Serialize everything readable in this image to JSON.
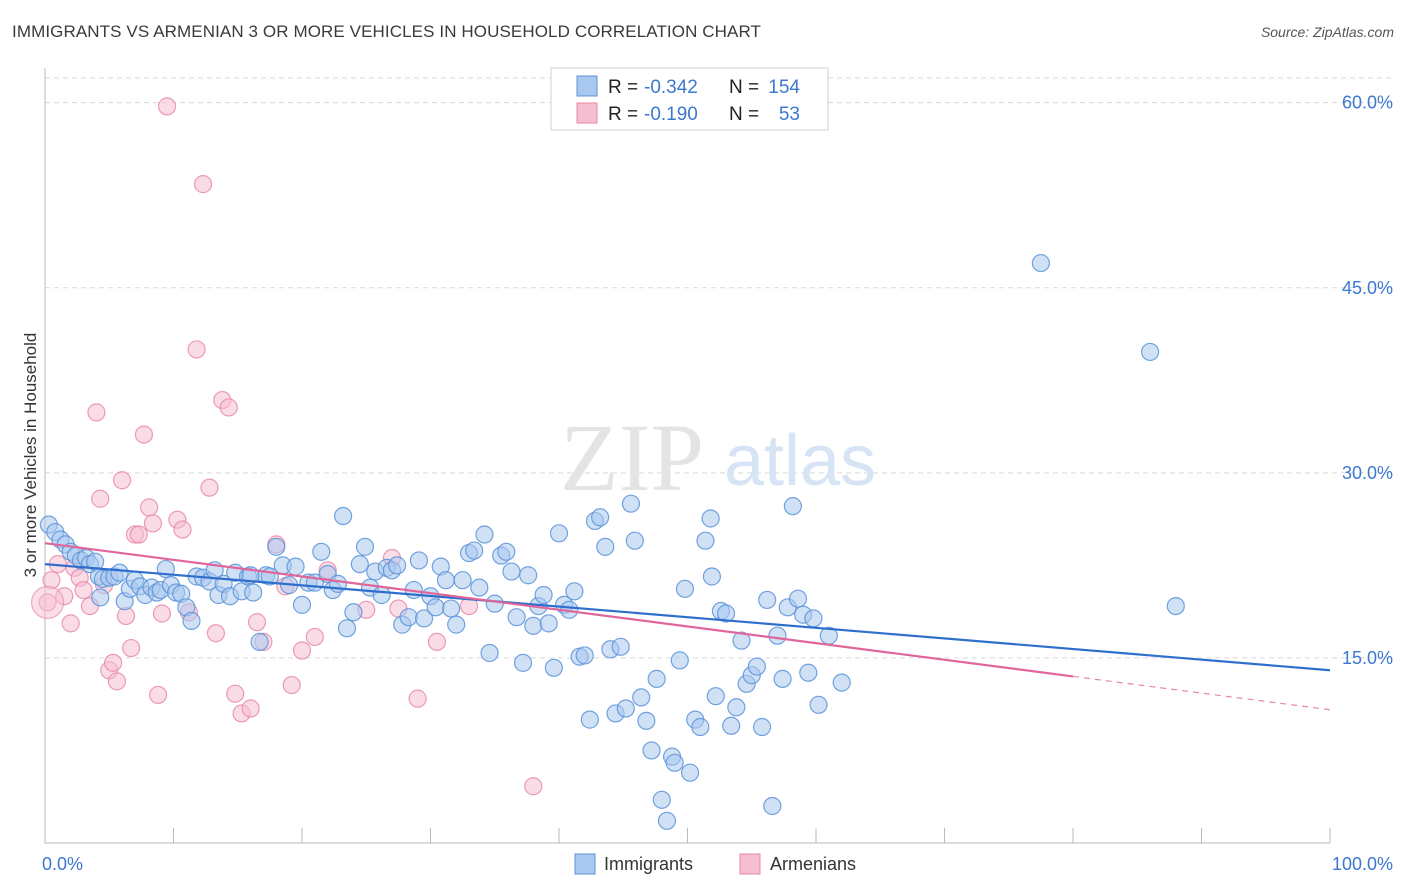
{
  "title": "IMMIGRANTS VS ARMENIAN 3 OR MORE VEHICLES IN HOUSEHOLD CORRELATION CHART",
  "source": "Source: ZipAtlas.com",
  "watermark": {
    "part1": "ZIP",
    "part2": "atlas"
  },
  "colors": {
    "immigrants": "#5b93d9",
    "immigrants_fill": "#a9c8ef",
    "immigrants_line": "#2f6fcc",
    "armenians": "#e98aaa",
    "armenians_fill": "#f5bfd1",
    "armenians_line": "#e0669a",
    "grid": "#d9d9d9",
    "tick": "#3b78d0"
  },
  "legend": {
    "row1": {
      "r_label": "R =",
      "r_value": "-0.342",
      "n_label": "N =",
      "n_value": "154"
    },
    "row2": {
      "r_label": "R =",
      "r_value": "-0.190",
      "n_label": "N =",
      "n_value": "53"
    }
  },
  "bottom_legend": {
    "immigrants": "Immigrants",
    "armenians": "Armenians"
  },
  "chart_data": {
    "type": "scatter",
    "xlabel": "",
    "ylabel": "3 or more Vehicles in Household",
    "xlim": [
      0,
      100
    ],
    "ylim": [
      0,
      62
    ],
    "x_tick_labels": [
      "0.0%",
      "100.0%"
    ],
    "y_ticks": [
      15,
      30,
      45,
      60
    ],
    "y_tick_labels": [
      "15.0%",
      "30.0%",
      "45.0%",
      "60.0%"
    ],
    "grid": true,
    "series": [
      {
        "name": "Immigrants",
        "trend": {
          "x": [
            0,
            100
          ],
          "y": [
            22.6,
            14.0
          ],
          "solid_to": 100
        },
        "points": [
          [
            0.3,
            25.8
          ],
          [
            0.8,
            25.2
          ],
          [
            1.2,
            24.6
          ],
          [
            1.6,
            24.2
          ],
          [
            2.0,
            23.6
          ],
          [
            2.4,
            23.3
          ],
          [
            2.8,
            22.9
          ],
          [
            3.2,
            23.1
          ],
          [
            3.5,
            22.6
          ],
          [
            3.9,
            22.8
          ],
          [
            4.2,
            21.6
          ],
          [
            4.5,
            21.4
          ],
          [
            5.0,
            21.5
          ],
          [
            5.4,
            21.6
          ],
          [
            5.8,
            21.9
          ],
          [
            6.2,
            19.6
          ],
          [
            6.6,
            20.6
          ],
          [
            7.0,
            21.3
          ],
          [
            7.4,
            20.8
          ],
          [
            7.8,
            20.1
          ],
          [
            8.3,
            20.7
          ],
          [
            8.7,
            20.3
          ],
          [
            9.0,
            20.5
          ],
          [
            9.4,
            22.2
          ],
          [
            9.8,
            20.9
          ],
          [
            10.2,
            20.3
          ],
          [
            10.6,
            20.2
          ],
          [
            11.0,
            19.1
          ],
          [
            11.4,
            18.0
          ],
          [
            11.8,
            21.6
          ],
          [
            12.3,
            21.5
          ],
          [
            12.8,
            21.2
          ],
          [
            13.2,
            22.1
          ],
          [
            13.5,
            20.1
          ],
          [
            13.9,
            21.0
          ],
          [
            14.4,
            20.0
          ],
          [
            14.8,
            21.9
          ],
          [
            15.3,
            20.4
          ],
          [
            15.8,
            21.6
          ],
          [
            16.2,
            20.3
          ],
          [
            16.7,
            16.3
          ],
          [
            17.2,
            21.7
          ],
          [
            17.5,
            21.6
          ],
          [
            18.0,
            24.0
          ],
          [
            18.5,
            22.5
          ],
          [
            19.0,
            20.9
          ],
          [
            19.5,
            22.4
          ],
          [
            20.0,
            19.3
          ],
          [
            20.5,
            21.1
          ],
          [
            21.0,
            21.1
          ],
          [
            21.5,
            23.6
          ],
          [
            22.0,
            21.8
          ],
          [
            22.4,
            20.5
          ],
          [
            22.8,
            21.0
          ],
          [
            23.2,
            26.5
          ],
          [
            23.5,
            17.4
          ],
          [
            24.0,
            18.7
          ],
          [
            24.5,
            22.6
          ],
          [
            24.9,
            24.0
          ],
          [
            25.3,
            20.7
          ],
          [
            25.7,
            22.0
          ],
          [
            26.2,
            20.1
          ],
          [
            26.6,
            22.3
          ],
          [
            27.0,
            22.1
          ],
          [
            27.4,
            22.5
          ],
          [
            27.8,
            17.7
          ],
          [
            28.3,
            18.3
          ],
          [
            28.7,
            20.5
          ],
          [
            29.1,
            22.9
          ],
          [
            29.5,
            18.2
          ],
          [
            30.0,
            20.0
          ],
          [
            30.4,
            19.1
          ],
          [
            30.8,
            22.4
          ],
          [
            31.2,
            21.3
          ],
          [
            31.6,
            19.0
          ],
          [
            32.0,
            17.7
          ],
          [
            32.5,
            21.3
          ],
          [
            33.0,
            23.5
          ],
          [
            33.4,
            23.7
          ],
          [
            33.8,
            20.7
          ],
          [
            34.2,
            25.0
          ],
          [
            34.6,
            15.4
          ],
          [
            35.0,
            19.4
          ],
          [
            35.5,
            23.3
          ],
          [
            35.9,
            23.6
          ],
          [
            36.3,
            22.0
          ],
          [
            36.7,
            18.3
          ],
          [
            37.2,
            14.6
          ],
          [
            37.6,
            21.7
          ],
          [
            38.0,
            17.6
          ],
          [
            38.4,
            19.2
          ],
          [
            38.8,
            20.1
          ],
          [
            39.2,
            17.8
          ],
          [
            39.6,
            14.2
          ],
          [
            40.0,
            25.1
          ],
          [
            40.4,
            19.3
          ],
          [
            40.8,
            18.9
          ],
          [
            41.2,
            20.4
          ],
          [
            41.6,
            15.1
          ],
          [
            42.0,
            15.2
          ],
          [
            42.4,
            10.0
          ],
          [
            42.8,
            26.1
          ],
          [
            43.2,
            26.4
          ],
          [
            43.6,
            24.0
          ],
          [
            44.0,
            15.7
          ],
          [
            44.4,
            10.5
          ],
          [
            44.8,
            15.9
          ],
          [
            45.2,
            10.9
          ],
          [
            45.6,
            27.5
          ],
          [
            45.9,
            24.5
          ],
          [
            46.4,
            11.8
          ],
          [
            46.8,
            9.9
          ],
          [
            47.2,
            7.5
          ],
          [
            47.6,
            13.3
          ],
          [
            48.0,
            3.5
          ],
          [
            48.4,
            1.8
          ],
          [
            48.8,
            7.0
          ],
          [
            49.0,
            6.5
          ],
          [
            49.4,
            14.8
          ],
          [
            49.8,
            20.6
          ],
          [
            50.2,
            5.7
          ],
          [
            50.6,
            10.0
          ],
          [
            51.0,
            9.4
          ],
          [
            51.4,
            24.5
          ],
          [
            51.8,
            26.3
          ],
          [
            52.2,
            11.9
          ],
          [
            52.6,
            18.8
          ],
          [
            53.0,
            18.6
          ],
          [
            53.4,
            9.5
          ],
          [
            53.8,
            11.0
          ],
          [
            54.2,
            16.4
          ],
          [
            54.6,
            12.9
          ],
          [
            55.0,
            13.6
          ],
          [
            55.4,
            14.3
          ],
          [
            55.8,
            9.4
          ],
          [
            56.2,
            19.7
          ],
          [
            56.6,
            3.0
          ],
          [
            57.0,
            16.8
          ],
          [
            57.4,
            13.3
          ],
          [
            57.8,
            19.1
          ],
          [
            58.2,
            27.3
          ],
          [
            58.6,
            19.8
          ],
          [
            59.0,
            18.5
          ],
          [
            59.4,
            13.8
          ],
          [
            59.8,
            18.2
          ],
          [
            60.2,
            11.2
          ],
          [
            61.0,
            16.8
          ],
          [
            62.0,
            13.0
          ],
          [
            77.5,
            47.0
          ],
          [
            86.0,
            39.8
          ],
          [
            88.0,
            19.2
          ],
          [
            4.3,
            19.9
          ],
          [
            16.0,
            21.7
          ],
          [
            51.9,
            21.6
          ]
        ]
      },
      {
        "name": "Armenians",
        "trend": {
          "x": [
            0,
            100
          ],
          "y": [
            24.3,
            10.8
          ],
          "solid_to": 80
        },
        "points": [
          [
            0.2,
            19.5
          ],
          [
            0.5,
            21.3
          ],
          [
            1.0,
            22.6
          ],
          [
            1.5,
            20.0
          ],
          [
            2.0,
            17.8
          ],
          [
            2.3,
            22.3
          ],
          [
            2.7,
            21.5
          ],
          [
            3.0,
            20.5
          ],
          [
            3.5,
            19.2
          ],
          [
            4.0,
            34.9
          ],
          [
            4.3,
            27.9
          ],
          [
            4.6,
            20.9
          ],
          [
            5.0,
            14.0
          ],
          [
            5.3,
            14.6
          ],
          [
            5.6,
            13.1
          ],
          [
            6.0,
            29.4
          ],
          [
            6.3,
            18.4
          ],
          [
            6.7,
            15.8
          ],
          [
            7.0,
            25.0
          ],
          [
            7.3,
            25.0
          ],
          [
            7.7,
            33.1
          ],
          [
            8.1,
            27.2
          ],
          [
            8.4,
            25.9
          ],
          [
            8.8,
            12.0
          ],
          [
            9.1,
            18.6
          ],
          [
            9.5,
            59.7
          ],
          [
            10.3,
            26.2
          ],
          [
            10.7,
            25.4
          ],
          [
            11.2,
            18.7
          ],
          [
            11.8,
            40.0
          ],
          [
            12.3,
            53.4
          ],
          [
            12.8,
            28.8
          ],
          [
            13.3,
            17.0
          ],
          [
            13.8,
            35.9
          ],
          [
            14.3,
            35.3
          ],
          [
            14.8,
            12.1
          ],
          [
            15.3,
            10.5
          ],
          [
            16.0,
            10.9
          ],
          [
            16.5,
            17.9
          ],
          [
            17.0,
            16.3
          ],
          [
            18.0,
            24.2
          ],
          [
            18.7,
            20.8
          ],
          [
            19.2,
            12.8
          ],
          [
            20.0,
            15.6
          ],
          [
            21.0,
            16.7
          ],
          [
            22.0,
            22.1
          ],
          [
            25.0,
            18.9
          ],
          [
            27.0,
            23.1
          ],
          [
            27.5,
            19.0
          ],
          [
            29.0,
            11.7
          ],
          [
            30.5,
            16.3
          ],
          [
            33.0,
            19.2
          ],
          [
            38.0,
            4.6
          ]
        ]
      }
    ]
  }
}
